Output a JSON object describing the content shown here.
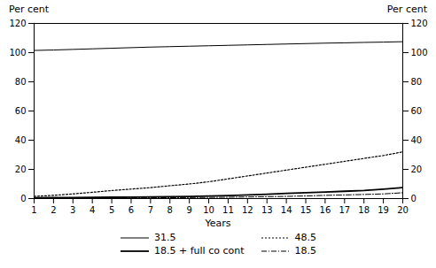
{
  "chart_data": {
    "type": "line",
    "xlabel": "Years",
    "ylabel": "Per cent",
    "y2label": "Per cent",
    "x": [
      1,
      2,
      3,
      4,
      5,
      6,
      7,
      8,
      9,
      10,
      11,
      12,
      13,
      14,
      15,
      16,
      17,
      18,
      19,
      20
    ],
    "series": [
      {
        "name": "31.5",
        "color": "#000000",
        "line_style": "solid",
        "values": [
          101.5,
          101.8,
          102.2,
          102.6,
          103.0,
          103.4,
          103.8,
          104.1,
          104.4,
          104.7,
          105.0,
          105.3,
          105.6,
          105.9,
          106.2,
          106.5,
          106.7,
          107.0,
          107.2,
          107.5
        ]
      },
      {
        "name": "48.5",
        "color": "#000000",
        "line_style": "dotted",
        "values": [
          1.5,
          2.2,
          3.2,
          4.3,
          5.5,
          6.5,
          7.5,
          8.8,
          10.0,
          11.5,
          13.5,
          15.5,
          17.5,
          19.5,
          21.5,
          23.5,
          25.5,
          27.5,
          29.5,
          32.0
        ]
      },
      {
        "name": "18.5 + full co cont",
        "color": "#000000",
        "line_style": "solid",
        "values": [
          0.5,
          0.6,
          0.7,
          0.8,
          0.9,
          1.0,
          1.1,
          1.3,
          1.5,
          1.8,
          2.1,
          2.5,
          3.0,
          3.5,
          4.0,
          4.5,
          5.0,
          5.5,
          6.5,
          7.5
        ]
      },
      {
        "name": "18.5",
        "color": "#000000",
        "line_style": "dashdot",
        "values": [
          0.2,
          0.2,
          0.3,
          0.3,
          0.4,
          0.4,
          0.5,
          0.6,
          0.7,
          0.8,
          0.9,
          1.1,
          1.3,
          1.5,
          1.8,
          2.2,
          2.5,
          2.8,
          3.2,
          4.0
        ]
      }
    ],
    "xlim": [
      1,
      20
    ],
    "xticks": [
      1,
      2,
      3,
      4,
      5,
      6,
      7,
      8,
      9,
      10,
      11,
      12,
      13,
      14,
      15,
      16,
      17,
      18,
      19,
      20
    ],
    "ylim": [
      0,
      120
    ],
    "yticks": [
      0,
      20,
      40,
      60,
      80,
      100,
      120
    ],
    "y2lim": [
      0,
      120
    ],
    "y2ticks": [
      0,
      20,
      40,
      60,
      80,
      100,
      120
    ],
    "grid": false,
    "legend": "bottom"
  }
}
